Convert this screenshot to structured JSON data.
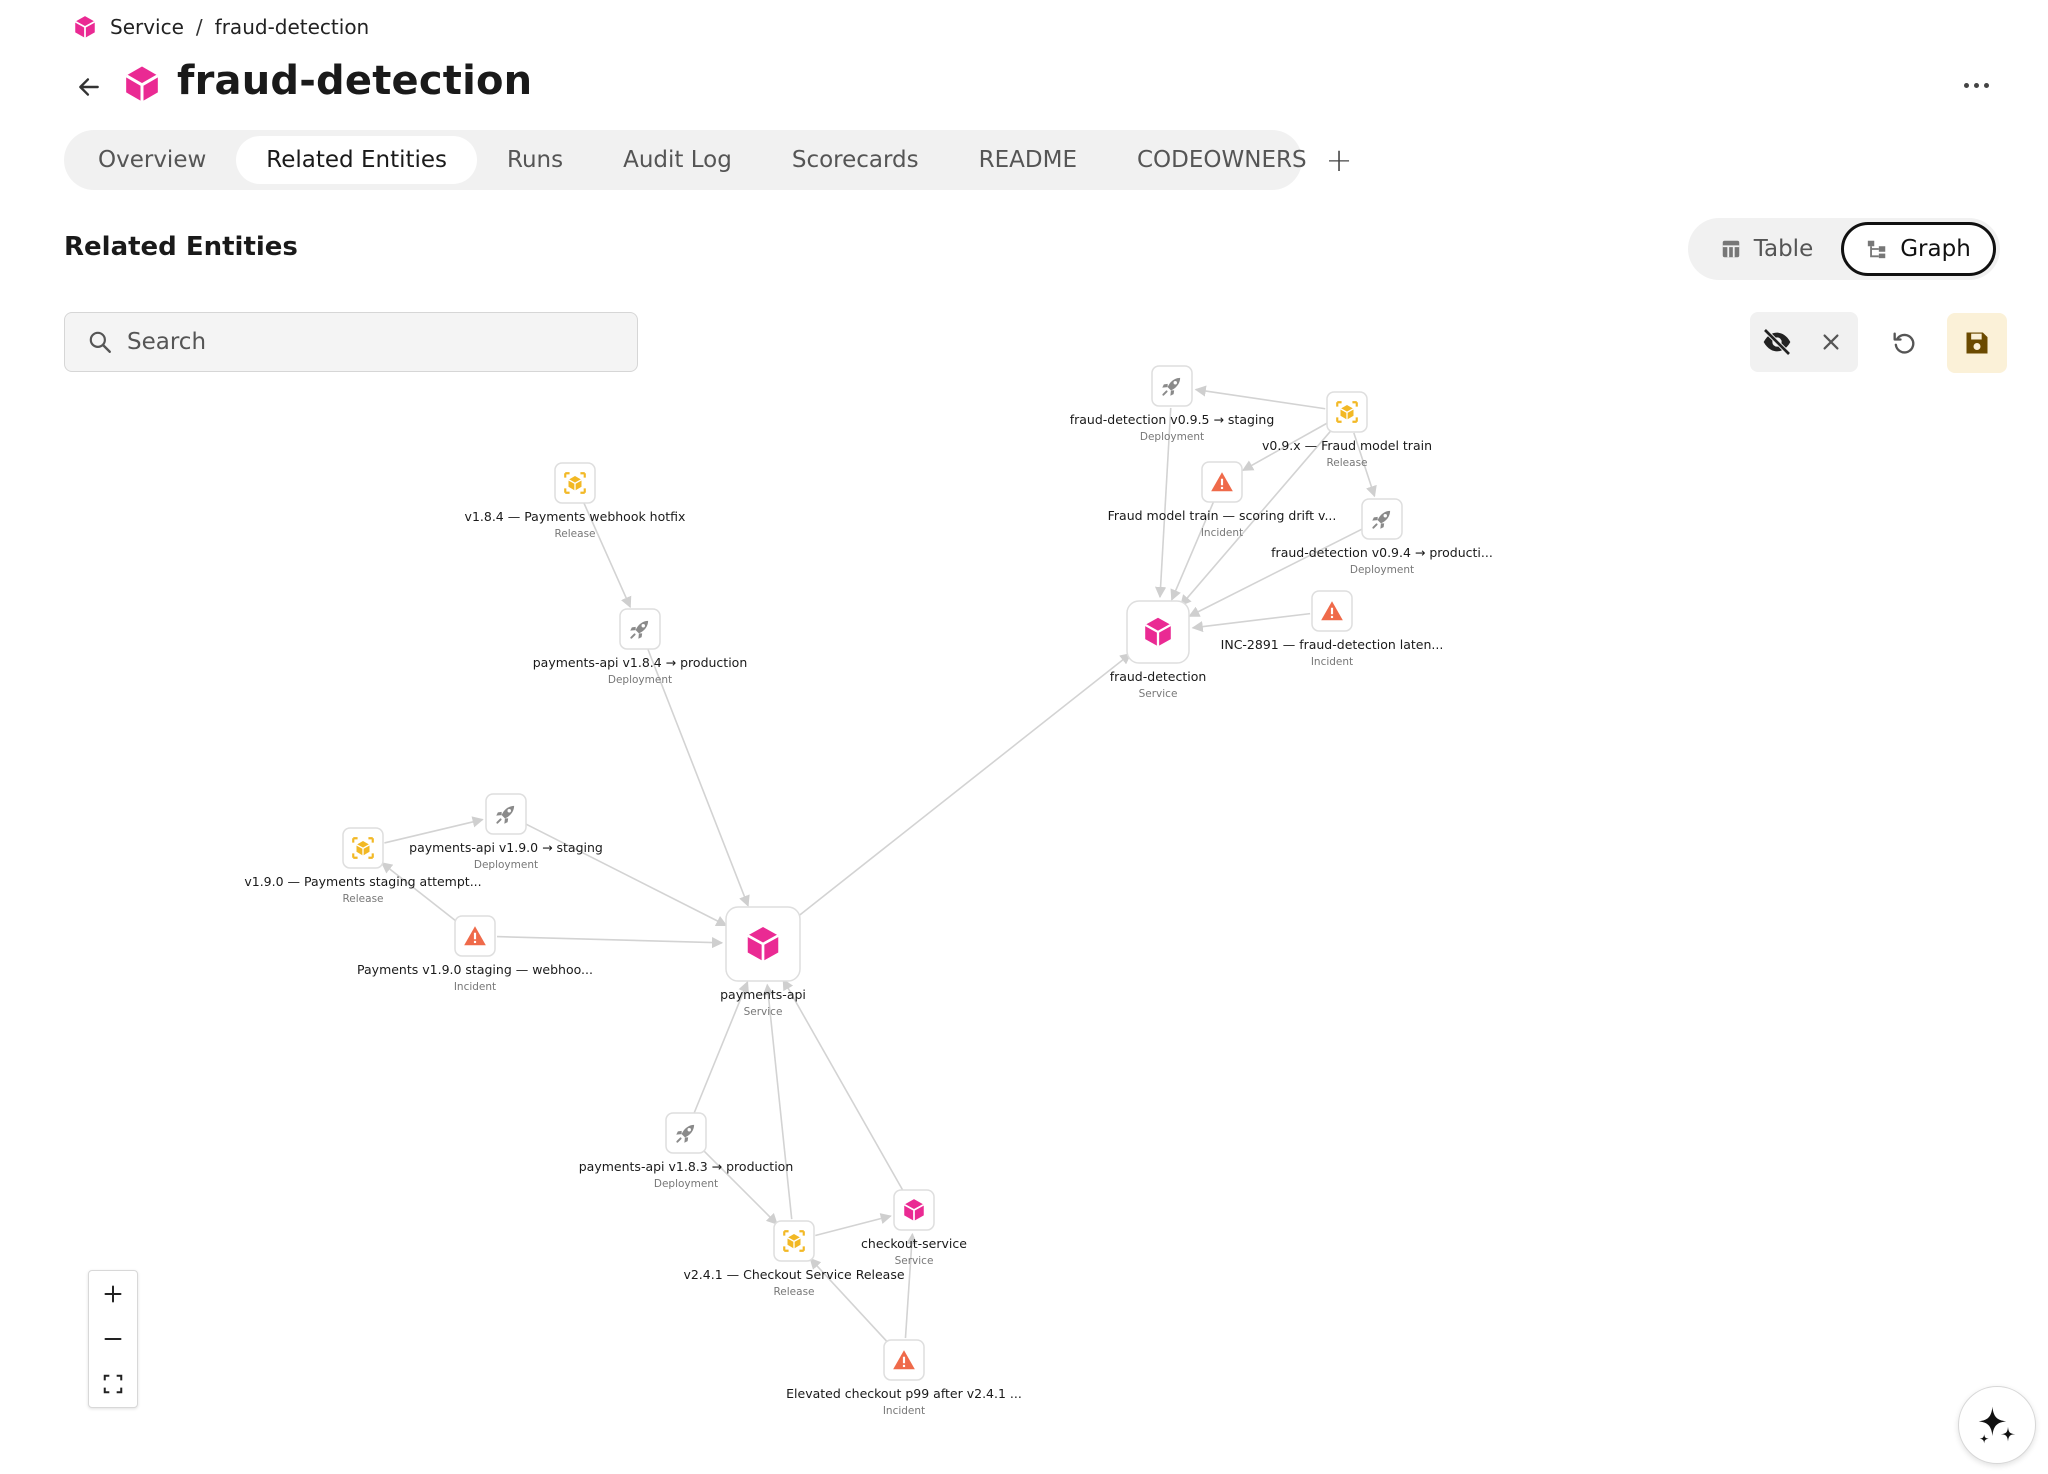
{
  "breadcrumb": {
    "root": "Service",
    "separator": "/",
    "current": "fraud-detection"
  },
  "header": {
    "title": "fraud-detection"
  },
  "tabs": [
    {
      "label": "Overview"
    },
    {
      "label": "Related Entities",
      "active": true
    },
    {
      "label": "Runs"
    },
    {
      "label": "Audit Log"
    },
    {
      "label": "Scorecards"
    },
    {
      "label": "README"
    },
    {
      "label": "CODEOWNERS"
    }
  ],
  "tab_add_label": "+",
  "section": {
    "title": "Related Entities"
  },
  "view_toggle": {
    "table_label": "Table",
    "graph_label": "Graph",
    "selected": "Graph"
  },
  "search": {
    "placeholder": "Search",
    "value": ""
  },
  "colors": {
    "service": "#ea2a93",
    "release": "#f2b824",
    "incident": "#ef6a4a",
    "deployment": "#8a8a8a",
    "edge": "#d3d3d3",
    "save_bg": "#fbf1d8",
    "save_icon": "#6b4a00"
  },
  "graph": {
    "nodes": [
      {
        "id": "fd",
        "label": "fraud-detection",
        "type": "Service",
        "kind": "service"
      },
      {
        "id": "pa",
        "label": "payments-api",
        "type": "Service",
        "kind": "service"
      },
      {
        "id": "cs",
        "label": "checkout-service",
        "type": "Service",
        "kind": "service"
      },
      {
        "id": "fd095",
        "label": "fraud-detection v0.9.5 → staging",
        "type": "Deployment",
        "kind": "deployment"
      },
      {
        "id": "v09x",
        "label": "v0.9.x — Fraud model train",
        "type": "Release",
        "kind": "release"
      },
      {
        "id": "fmt",
        "label": "Fraud model train — scoring drift v...",
        "type": "Incident",
        "kind": "incident"
      },
      {
        "id": "fd094",
        "label": "fraud-detection v0.9.4 → producti...",
        "type": "Deployment",
        "kind": "deployment"
      },
      {
        "id": "inc2891",
        "label": "INC-2891 — fraud-detection laten...",
        "type": "Incident",
        "kind": "incident"
      },
      {
        "id": "v184",
        "label": "v1.8.4 — Payments webhook hotfix",
        "type": "Release",
        "kind": "release"
      },
      {
        "id": "pa184",
        "label": "payments-api v1.8.4 → production",
        "type": "Deployment",
        "kind": "deployment"
      },
      {
        "id": "pa190",
        "label": "payments-api v1.9.0 → staging",
        "type": "Deployment",
        "kind": "deployment"
      },
      {
        "id": "v190",
        "label": "v1.9.0 — Payments staging attempt...",
        "type": "Release",
        "kind": "release"
      },
      {
        "id": "pinc190",
        "label": "Payments v1.9.0 staging — webhoo...",
        "type": "Incident",
        "kind": "incident"
      },
      {
        "id": "pa183",
        "label": "payments-api v1.8.3 → production",
        "type": "Deployment",
        "kind": "deployment"
      },
      {
        "id": "v241",
        "label": "v2.4.1 — Checkout Service Release",
        "type": "Release",
        "kind": "release"
      },
      {
        "id": "elev",
        "label": "Elevated checkout p99 after v2.4.1 ...",
        "type": "Incident",
        "kind": "incident"
      }
    ],
    "edges": [
      [
        "v09x",
        "fd095"
      ],
      [
        "v09x",
        "fmt"
      ],
      [
        "v09x",
        "fd094"
      ],
      [
        "v09x",
        "fd"
      ],
      [
        "fd095",
        "fd"
      ],
      [
        "fmt",
        "fd"
      ],
      [
        "fd094",
        "fd"
      ],
      [
        "inc2891",
        "fd"
      ],
      [
        "pa",
        "fd"
      ],
      [
        "v184",
        "pa184"
      ],
      [
        "pa184",
        "pa"
      ],
      [
        "v190",
        "pa190"
      ],
      [
        "pa190",
        "pa"
      ],
      [
        "pinc190",
        "v190"
      ],
      [
        "pinc190",
        "pa"
      ],
      [
        "pa183",
        "pa"
      ],
      [
        "pa183",
        "v241"
      ],
      [
        "v241",
        "pa"
      ],
      [
        "v241",
        "cs"
      ],
      [
        "cs",
        "pa"
      ],
      [
        "elev",
        "cs"
      ],
      [
        "elev",
        "v241"
      ]
    ]
  }
}
